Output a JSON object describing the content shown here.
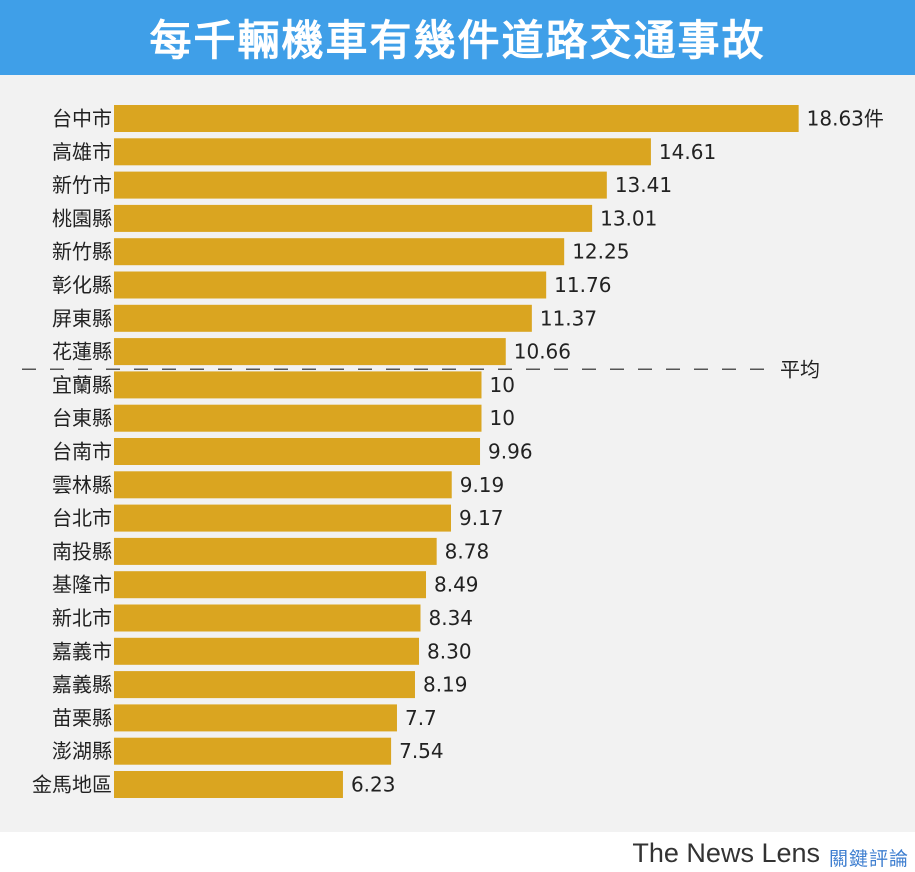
{
  "header": {
    "title": "每千輛機車有幾件道路交通事故"
  },
  "footer": {
    "brand": "The News Lens",
    "brand_cn": "關鍵評論"
  },
  "colors": {
    "bar": "#daa520",
    "header_bg": "#3f9fe8",
    "panel_bg": "#f2f2f2",
    "text": "#222222"
  },
  "chart_data": {
    "type": "bar",
    "orientation": "horizontal",
    "title": "每千輛機車有幾件道路交通事故",
    "categories": [
      "台中市",
      "高雄市",
      "新竹市",
      "桃園縣",
      "新竹縣",
      "彰化縣",
      "屏東縣",
      "花蓮縣",
      "宜蘭縣",
      "台東縣",
      "台南市",
      "雲林縣",
      "台北市",
      "南投縣",
      "基隆市",
      "新北市",
      "嘉義市",
      "嘉義縣",
      "苗栗縣",
      "澎湖縣",
      "金馬地區"
    ],
    "values": [
      18.63,
      14.61,
      13.41,
      13.01,
      12.25,
      11.76,
      11.37,
      10.66,
      10,
      10,
      9.96,
      9.19,
      9.17,
      8.78,
      8.49,
      8.34,
      8.3,
      8.19,
      7.7,
      7.54,
      6.23
    ],
    "value_labels": [
      "18.63件",
      "14.61",
      "13.41",
      "13.01",
      "12.25",
      "11.76",
      "11.37",
      "10.66",
      "10",
      "10",
      "9.96",
      "9.19",
      "9.17",
      "8.78",
      "8.49",
      "8.34",
      "8.30",
      "8.19",
      "7.7",
      "7.54",
      "6.23"
    ],
    "reference_line": {
      "label": "平均",
      "position": "between 花蓮縣 and 宜蘭縣"
    },
    "grid": false,
    "legend": "none"
  }
}
